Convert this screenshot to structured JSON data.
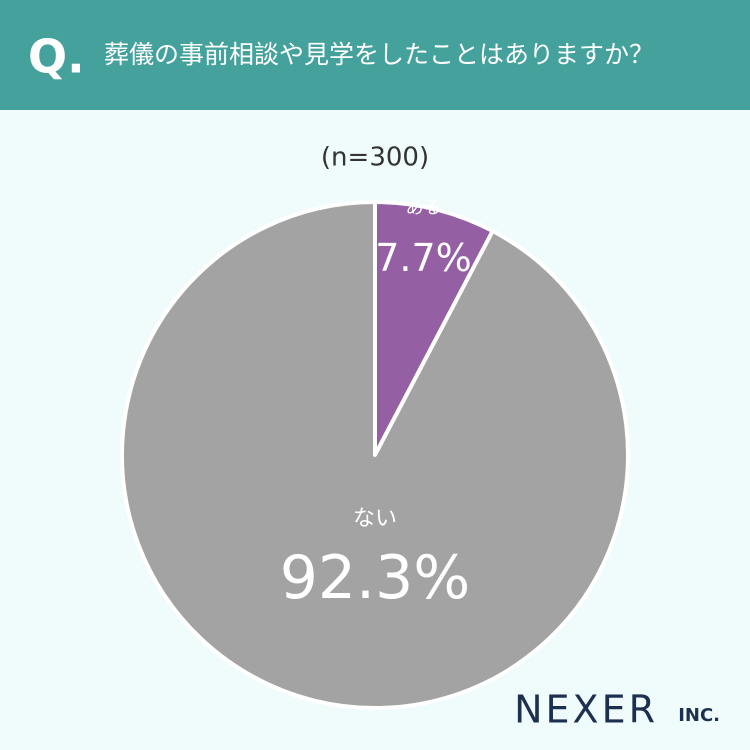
{
  "question_marker": "Q.",
  "brand": "NEXER",
  "brand_suffix": "INC.",
  "chart_data": {
    "type": "pie",
    "title": "葬儀の事前相談や見学をしたことはありますか？",
    "subtitle": "(n=300)",
    "categories": [
      "ある",
      "ない"
    ],
    "values": [
      7.7,
      92.3
    ],
    "value_labels": [
      "7.7%",
      "92.3%"
    ],
    "colors": [
      "#9460a3",
      "#a3a3a3"
    ],
    "start_angle": 0,
    "direction": "clockwise"
  }
}
